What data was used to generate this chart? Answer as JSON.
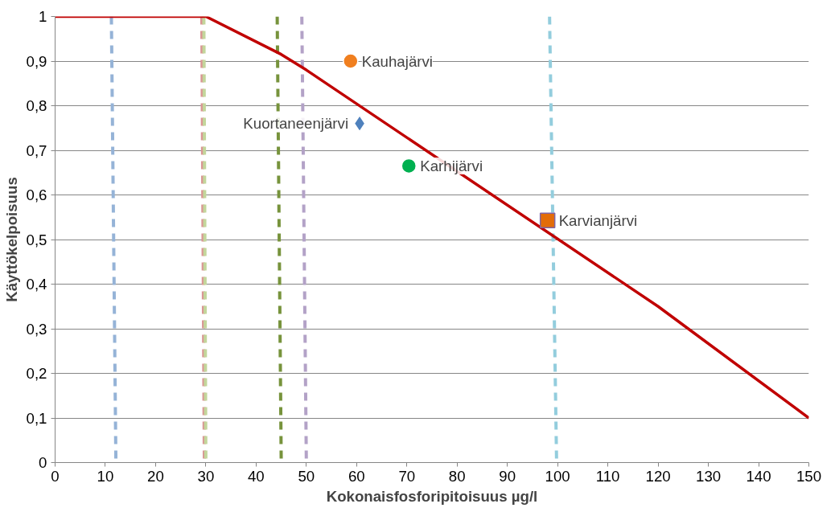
{
  "chart_data": {
    "type": "line",
    "xlabel": "Kokonaisfosforipitoisuus µg/l",
    "ylabel": "Käyttökelpoisuus",
    "xlim": [
      0,
      150
    ],
    "ylim": [
      0,
      1
    ],
    "xticks": [
      0,
      10,
      20,
      30,
      40,
      50,
      60,
      70,
      80,
      90,
      100,
      110,
      120,
      130,
      140,
      150
    ],
    "yticks": [
      0,
      {
        "value": 0.1,
        "label": "0,1"
      },
      {
        "value": 0.2,
        "label": "0,2"
      },
      {
        "value": 0.3,
        "label": "0,3"
      },
      {
        "value": 0.4,
        "label": "0,4"
      },
      {
        "value": 0.5,
        "label": "0,5"
      },
      {
        "value": 0.6,
        "label": "0,6"
      },
      {
        "value": 0.7,
        "label": "0,7"
      },
      {
        "value": 0.8,
        "label": "0,8"
      },
      {
        "value": 0.9,
        "label": "0,9"
      },
      1
    ],
    "grid": "y",
    "marker": "none",
    "series": [
      {
        "color": "#95b3d7",
        "line_style": "dashed",
        "x": [
          11.2,
          12.1
        ],
        "values": [
          1,
          0
        ]
      },
      {
        "color": "#d99694",
        "line_style": "dashed",
        "x": [
          29.2,
          29.7
        ],
        "values": [
          1,
          0
        ]
      },
      {
        "color": "#c3d69b",
        "line_style": "dashed",
        "x": [
          29.6,
          30
        ],
        "values": [
          1,
          0
        ]
      },
      {
        "color": "#77933c",
        "line_style": "dashed",
        "x": [
          44.2,
          45
        ],
        "values": [
          1,
          0
        ]
      },
      {
        "color": "#b3a2c7",
        "line_style": "dashed",
        "x": [
          49.1,
          50
        ],
        "values": [
          1,
          0
        ]
      },
      {
        "color": "#93cddd",
        "line_style": "dashed",
        "x": [
          98.4,
          99.8
        ],
        "values": [
          1,
          0
        ]
      },
      {
        "color": "#c00000",
        "line_style": "solid",
        "x": [
          0,
          30,
          45,
          50,
          120,
          150
        ],
        "values": [
          1,
          1,
          0.915,
          0.88,
          0.35,
          0.1
        ]
      },
      {
        "type": "scatter",
        "name": "Kauhajärvi",
        "color": "#f07f1f",
        "marker": "circle",
        "x": [
          58.8
        ],
        "values": [
          0.9
        ]
      },
      {
        "type": "scatter",
        "name": "Kuortaneenjärvi",
        "color": "#4f81bd",
        "marker": "diamond",
        "x": [
          60.6
        ],
        "values": [
          0.76
        ]
      },
      {
        "type": "scatter",
        "name": "Karhijärvi",
        "color": "#00b050",
        "marker": "circle",
        "x": [
          70.4
        ],
        "values": [
          0.665
        ]
      },
      {
        "type": "scatter",
        "name": "Karvianjärvi",
        "color": "#e36c09",
        "marker": "square",
        "x": [
          98
        ],
        "values": [
          0.543
        ]
      }
    ]
  }
}
